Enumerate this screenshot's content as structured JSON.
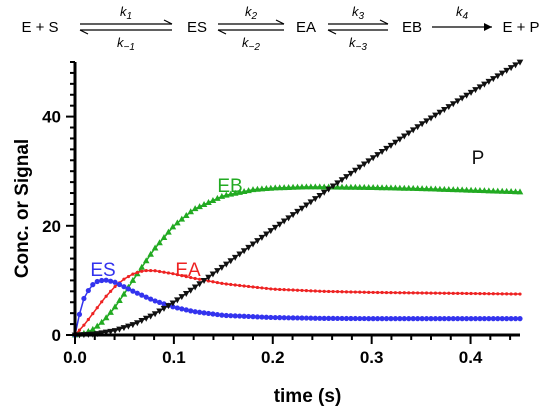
{
  "scheme": {
    "species": [
      "E + S",
      "ES",
      "EA",
      "EB",
      "E + P"
    ],
    "rate_constants": {
      "forward": [
        {
          "base": "k",
          "sub": "1"
        },
        {
          "base": "k",
          "sub": "2"
        },
        {
          "base": "k",
          "sub": "3"
        },
        {
          "base": "k",
          "sub": "4"
        }
      ],
      "reverse": [
        {
          "base": "k",
          "sub": "−1"
        },
        {
          "base": "k",
          "sub": "−2"
        },
        {
          "base": "k",
          "sub": "−3"
        }
      ]
    }
  },
  "chart_data": {
    "type": "scatter",
    "xlabel": "time (s)",
    "ylabel": "Conc. or Signal",
    "xlim": [
      0,
      0.45
    ],
    "ylim": [
      0,
      50
    ],
    "xticks": [
      0.0,
      0.1,
      0.2,
      0.3,
      0.4
    ],
    "xtick_labels": [
      "0.0",
      "0.1",
      "0.2",
      "0.3",
      "0.4"
    ],
    "yticks": [
      0,
      20,
      40
    ],
    "ytick_labels": [
      "0",
      "20",
      "40"
    ],
    "grid": false,
    "legend": "none (series labeled inline)",
    "series": [
      {
        "name": "ES",
        "color": "#3333ee",
        "marker": "circle",
        "x": [
          0,
          0.005,
          0.01,
          0.02,
          0.03,
          0.04,
          0.05,
          0.06,
          0.08,
          0.1,
          0.12,
          0.15,
          0.2,
          0.25,
          0.3,
          0.35,
          0.4,
          0.45
        ],
        "y": [
          0,
          4.2,
          7.3,
          9.7,
          10.1,
          9.7,
          8.8,
          7.9,
          6.3,
          5.1,
          4.3,
          3.6,
          3.2,
          3.05,
          3.0,
          3.0,
          3.0,
          3.0
        ]
      },
      {
        "name": "EA",
        "color": "#ee2222",
        "marker": "small-circle",
        "x": [
          0,
          0.01,
          0.02,
          0.03,
          0.04,
          0.05,
          0.06,
          0.07,
          0.08,
          0.1,
          0.12,
          0.15,
          0.2,
          0.25,
          0.3,
          0.35,
          0.4,
          0.45
        ],
        "y": [
          0,
          2.0,
          4.4,
          6.8,
          8.8,
          10.3,
          11.3,
          11.8,
          11.8,
          11.2,
          10.4,
          9.4,
          8.4,
          8.0,
          7.8,
          7.7,
          7.6,
          7.5
        ]
      },
      {
        "name": "EB",
        "color": "#22aa22",
        "marker": "triangle-up",
        "x": [
          0,
          0.01,
          0.02,
          0.03,
          0.04,
          0.05,
          0.06,
          0.08,
          0.1,
          0.12,
          0.15,
          0.18,
          0.2,
          0.23,
          0.25,
          0.3,
          0.35,
          0.4,
          0.45
        ],
        "y": [
          0,
          0.3,
          1.2,
          2.8,
          5.0,
          7.6,
          10.4,
          15.7,
          20.0,
          23.0,
          25.5,
          26.6,
          26.9,
          27.1,
          27.1,
          27.0,
          26.8,
          26.5,
          26.2
        ]
      },
      {
        "name": "P",
        "color": "#111111",
        "marker": "triangle-down",
        "x": [
          0,
          0.02,
          0.04,
          0.06,
          0.08,
          0.1,
          0.12,
          0.15,
          0.2,
          0.25,
          0.3,
          0.35,
          0.4,
          0.45
        ],
        "y": [
          0,
          0.2,
          0.8,
          2.0,
          3.8,
          6.0,
          8.6,
          12.6,
          19.4,
          25.9,
          32.3,
          38.6,
          44.4,
          50.0
        ]
      }
    ]
  }
}
